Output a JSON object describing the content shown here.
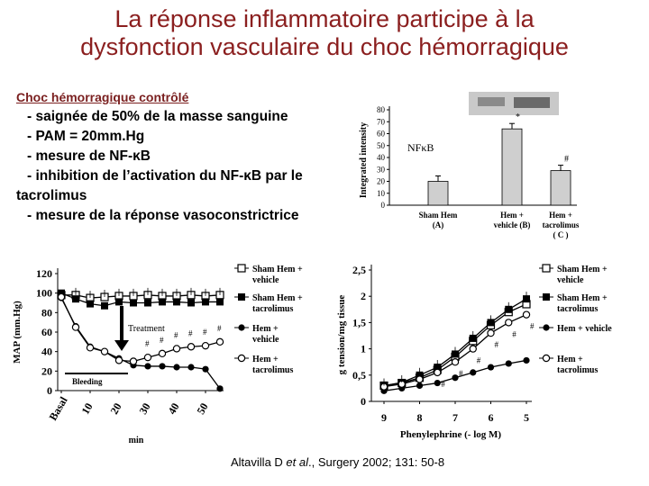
{
  "title": {
    "line1": "La réponse inflammatoire participe à la",
    "line2": "dysfonction vasculaire du choc hémorragique"
  },
  "intro": {
    "heading": "Choc hémorragique contrôlé",
    "items": [
      "- saignée de 50% de la masse sanguine",
      "- PAM = 20mm.Hg",
      "- mesure de NF-κB",
      "- inhibition de l’activation du NF-κB par le",
      "tacrolimus",
      "- mesure de la réponse vasoconstrictrice"
    ]
  },
  "citation": {
    "author": "Altavilla D ",
    "etal": "et al",
    "rest": "., Surgery 2002; 131: 50-8"
  },
  "colors": {
    "title": "#8b1f1f",
    "bar": "#cfcfcf"
  },
  "chart_data": [
    {
      "type": "bar",
      "ylabel": "Integrated intensity",
      "panel_label": "NFκB",
      "yticks": [
        "0",
        "10",
        "20",
        "30",
        "40",
        "50",
        "60",
        "70",
        "80"
      ],
      "ylim": [
        0,
        80
      ],
      "categories": [
        "Sham Hem (A)",
        "Hem + vehicle (B)",
        "Hem + tacrolimus (C)"
      ],
      "category_lines": [
        [
          "Sham Hem",
          "(A)"
        ],
        [
          "Hem +",
          "vehicle (B)"
        ],
        [
          "Hem +",
          "tacrolimus",
          "( C )"
        ]
      ],
      "values": [
        20,
        64,
        29
      ],
      "annotations": [
        "",
        "*",
        "#"
      ]
    },
    {
      "type": "line",
      "ylabel": "MAP (mm.Hg)",
      "xlabel": "min",
      "ylim": [
        0,
        120
      ],
      "yticks": [
        "0",
        "20",
        "40",
        "60",
        "80",
        "100",
        "120"
      ],
      "xticks": [
        "Basal",
        "10",
        "20",
        "30",
        "40",
        "50"
      ],
      "bleeding_label": "Bleeding",
      "treatment_label": "Treatment",
      "series": [
        {
          "name": "Sham Hem + vehicle",
          "legend_lines": [
            "Sham Hem +",
            "vehicle"
          ],
          "marker": "open-square",
          "values": [
            98,
            98,
            95,
            96,
            97,
            97,
            98,
            97,
            97,
            98,
            97,
            98
          ]
        },
        {
          "name": "Sham Hem + tacrolimus",
          "legend_lines": [
            "Sham Hem +",
            "tacrolimus"
          ],
          "marker": "filled-square",
          "values": [
            100,
            94,
            89,
            87,
            91,
            90,
            90,
            91,
            91,
            90,
            91,
            91
          ]
        },
        {
          "name": "Hem + vehicle",
          "legend_lines": [
            "Hem +",
            "vehicle"
          ],
          "marker": "filled-circle",
          "values": [
            95,
            66,
            45,
            40,
            33,
            26,
            25,
            25,
            24,
            24,
            22,
            2
          ]
        },
        {
          "name": "Hem + tacrolimus",
          "legend_lines": [
            "Hem +",
            "tacrolimus"
          ],
          "marker": "open-circle",
          "values": [
            96,
            65,
            44,
            40,
            31,
            30,
            34,
            38,
            43,
            45,
            46,
            50
          ]
        }
      ],
      "sig_marks": [
        "#",
        "#",
        "#",
        "#",
        "#",
        "#"
      ]
    },
    {
      "type": "line",
      "ylabel": "g tension/mg tissue",
      "xlabel": "Phenylephrine (- log M)",
      "ylim": [
        0,
        2.5
      ],
      "yticks": [
        "0",
        "0,5",
        "1",
        "1,5",
        "2",
        "2,5"
      ],
      "xticks": [
        "9",
        "8",
        "7",
        "6",
        "5"
      ],
      "series": [
        {
          "name": "Sham Hem + vehicle",
          "legend_lines": [
            "Sham Hem +",
            "vehicle"
          ],
          "marker": "open-square",
          "values": [
            0.3,
            0.35,
            0.45,
            0.6,
            0.85,
            1.15,
            1.45,
            1.7,
            1.85
          ]
        },
        {
          "name": "Sham Hem + tacrolimus",
          "legend_lines": [
            "Sham Hem +",
            "tacrolimus"
          ],
          "marker": "filled-square",
          "values": [
            0.3,
            0.36,
            0.5,
            0.65,
            0.9,
            1.2,
            1.5,
            1.75,
            1.95
          ]
        },
        {
          "name": "Hem + vehicle",
          "legend_lines": [
            "Hem + vehicle"
          ],
          "marker": "filled-circle",
          "values": [
            0.2,
            0.25,
            0.3,
            0.35,
            0.45,
            0.55,
            0.65,
            0.72,
            0.78
          ]
        },
        {
          "name": "Hem + tacrolimus",
          "legend_lines": [
            "Hem +",
            "tacrolimus"
          ],
          "marker": "open-circle",
          "values": [
            0.28,
            0.33,
            0.42,
            0.55,
            0.75,
            1.0,
            1.3,
            1.5,
            1.65
          ]
        }
      ],
      "sig_marks": [
        "#",
        "#",
        "#",
        "#",
        "#",
        "#"
      ]
    }
  ]
}
